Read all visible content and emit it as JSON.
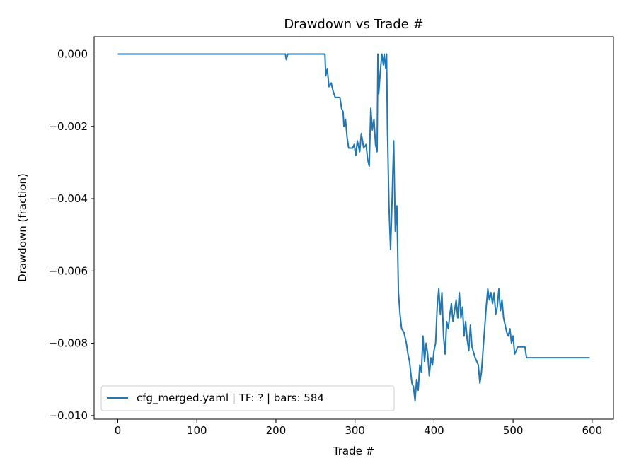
{
  "chart_data": {
    "type": "line",
    "title": "Drawdown vs Trade #",
    "xlabel": "Trade #",
    "ylabel": "Drawdown (fraction)",
    "x": [
      0,
      212,
      213,
      215,
      262,
      263,
      265,
      267,
      270,
      272,
      275,
      281,
      283,
      285,
      286,
      288,
      290,
      292,
      297,
      299,
      301,
      303,
      306,
      308,
      311,
      314,
      316,
      318,
      320,
      322,
      324,
      326,
      328,
      329,
      330,
      332,
      334,
      336,
      337,
      339,
      340,
      341,
      343,
      345,
      347,
      349,
      351,
      353,
      355,
      357,
      359,
      362,
      365,
      367,
      369,
      372,
      374,
      376,
      378,
      380,
      382,
      384,
      386,
      388,
      390,
      392,
      394,
      396,
      398,
      400,
      402,
      404,
      406,
      408,
      410,
      412,
      414,
      416,
      418,
      420,
      422,
      424,
      426,
      428,
      430,
      432,
      434,
      436,
      438,
      440,
      442,
      444,
      446,
      448,
      452,
      456,
      458,
      460,
      462,
      464,
      466,
      468,
      470,
      472,
      474,
      476,
      478,
      480,
      482,
      484,
      486,
      488,
      490,
      492,
      494,
      496,
      498,
      500,
      502,
      506,
      515,
      517,
      597
    ],
    "series": [
      {
        "name": "cfg_merged.yaml | TF: ? | bars: 584",
        "color": "#1f77b4",
        "values": [
          0,
          0,
          -0.00015,
          0,
          0,
          -0.0006,
          -0.0004,
          -0.0009,
          -0.0008,
          -0.001,
          -0.0012,
          -0.0012,
          -0.0015,
          -0.0016,
          -0.002,
          -0.0018,
          -0.0023,
          -0.0026,
          -0.0026,
          -0.0025,
          -0.0028,
          -0.0024,
          -0.0027,
          -0.0022,
          -0.0026,
          -0.0025,
          -0.0029,
          -0.0031,
          -0.0015,
          -0.0021,
          -0.0018,
          -0.0025,
          -0.0027,
          0,
          -0.0011,
          -0.0005,
          0,
          -0.0003,
          0,
          -0.0004,
          0,
          -0.002,
          -0.0042,
          -0.0054,
          -0.004,
          -0.0024,
          -0.0049,
          -0.0042,
          -0.0066,
          -0.0072,
          -0.0076,
          -0.0077,
          -0.008,
          -0.0083,
          -0.0085,
          -0.0091,
          -0.0092,
          -0.0096,
          -0.009,
          -0.0093,
          -0.0086,
          -0.0088,
          -0.0078,
          -0.0085,
          -0.008,
          -0.0083,
          -0.0089,
          -0.0084,
          -0.0086,
          -0.0082,
          -0.008,
          -0.007,
          -0.0065,
          -0.0072,
          -0.0066,
          -0.0078,
          -0.0083,
          -0.0074,
          -0.0076,
          -0.0072,
          -0.0069,
          -0.0074,
          -0.0071,
          -0.0068,
          -0.0073,
          -0.0066,
          -0.0073,
          -0.007,
          -0.0078,
          -0.0074,
          -0.0079,
          -0.0082,
          -0.0075,
          -0.0081,
          -0.0084,
          -0.0086,
          -0.0091,
          -0.0088,
          -0.0082,
          -0.0076,
          -0.007,
          -0.0065,
          -0.0068,
          -0.0066,
          -0.0069,
          -0.0066,
          -0.0072,
          -0.007,
          -0.0065,
          -0.0071,
          -0.0068,
          -0.0073,
          -0.0075,
          -0.0077,
          -0.0078,
          -0.0076,
          -0.008,
          -0.0078,
          -0.0083,
          -0.0081,
          -0.0081,
          -0.0084,
          -0.0084
        ]
      }
    ],
    "xlim": [
      -30,
      627
    ],
    "xticks": [
      0,
      100,
      200,
      300,
      400,
      500,
      600
    ],
    "ylim": [
      -0.0101,
      0.00048
    ],
    "yticks": [
      {
        "value": 0,
        "label": "0.000"
      },
      {
        "value": -0.002,
        "label": "−0.002"
      },
      {
        "value": -0.004,
        "label": "−0.004"
      },
      {
        "value": -0.006,
        "label": "−0.006"
      },
      {
        "value": -0.008,
        "label": "−0.008"
      },
      {
        "value": -0.01,
        "label": "−0.010"
      }
    ],
    "grid": false,
    "legend": "lower left"
  }
}
